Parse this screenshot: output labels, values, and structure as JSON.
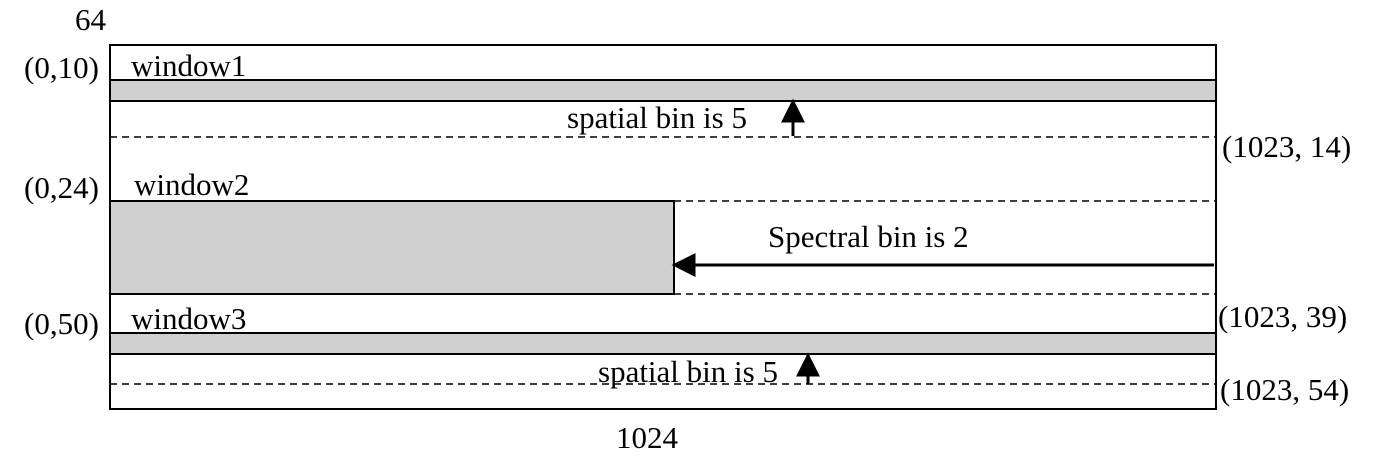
{
  "colors": {
    "stroke": "#000000",
    "band_fill": "#d0d0d0",
    "background": "#ffffff"
  },
  "labels": {
    "height": "64",
    "width": "1024",
    "window1": "window1",
    "window2": "window2",
    "window3": "window3",
    "coord_w1_start": "(0,10)",
    "coord_w2_start": "(0,24)",
    "coord_w3_start": "(0,50)",
    "coord_w1_end": "(1023, 14)",
    "coord_w2_end": "(1023, 39)",
    "coord_w3_end": "(1023, 54)",
    "spatial_bin_1": "spatial bin is 5",
    "spatial_bin_3": "spatial bin is 5",
    "spectral_bin_2": "Spectral bin is 2"
  }
}
